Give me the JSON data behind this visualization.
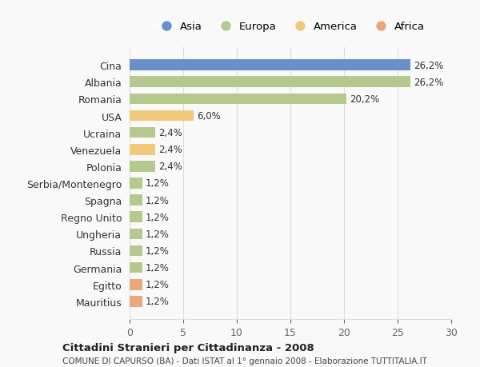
{
  "countries": [
    "Cina",
    "Albania",
    "Romania",
    "USA",
    "Ucraina",
    "Venezuela",
    "Polonia",
    "Serbia/Montenegro",
    "Spagna",
    "Regno Unito",
    "Ungheria",
    "Russia",
    "Germania",
    "Egitto",
    "Mauritius"
  ],
  "values": [
    26.2,
    26.2,
    20.2,
    6.0,
    2.4,
    2.4,
    2.4,
    1.2,
    1.2,
    1.2,
    1.2,
    1.2,
    1.2,
    1.2,
    1.2
  ],
  "labels": [
    "26,2%",
    "26,2%",
    "20,2%",
    "6,0%",
    "2,4%",
    "2,4%",
    "2,4%",
    "1,2%",
    "1,2%",
    "1,2%",
    "1,2%",
    "1,2%",
    "1,2%",
    "1,2%",
    "1,2%"
  ],
  "continents": [
    "Asia",
    "Europa",
    "Europa",
    "America",
    "Europa",
    "America",
    "Europa",
    "Europa",
    "Europa",
    "Europa",
    "Europa",
    "Europa",
    "Europa",
    "Africa",
    "Africa"
  ],
  "colors": {
    "Asia": "#6b8fc9",
    "Europa": "#b5c98e",
    "America": "#f0c97a",
    "Africa": "#e8a87c"
  },
  "legend_order": [
    "Asia",
    "Europa",
    "America",
    "Africa"
  ],
  "title1": "Cittadini Stranieri per Cittadinanza - 2008",
  "title2": "COMUNE DI CAPURSO (BA) - Dati ISTAT al 1° gennaio 2008 - Elaborazione TUTTITALIA.IT",
  "xlim": [
    0,
    30
  ],
  "xticks": [
    0,
    5,
    10,
    15,
    20,
    25,
    30
  ],
  "background_color": "#f9f9f9",
  "grid_color": "#dddddd"
}
